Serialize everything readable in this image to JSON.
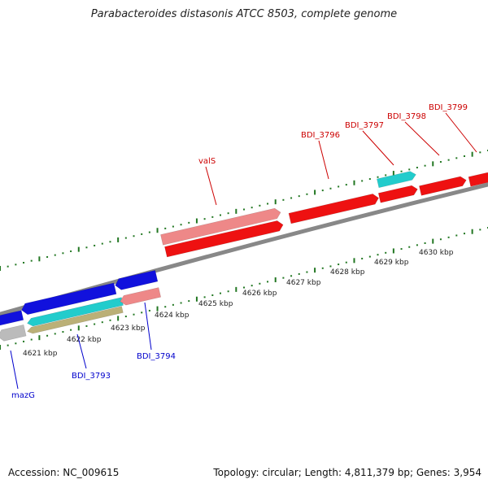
{
  "title": "Parabacteroides distasonis ATCC 8503, complete genome",
  "footer": {
    "accession": "Accession: NC_009615",
    "summary": "Topology: circular; Length: 4,811,379 bp; Genes: 3,954"
  },
  "colors": {
    "forward_label": "#cc0000",
    "reverse_label": "#0000cc",
    "backbone": "#888888",
    "tick": "#227722",
    "red": "#ee1111",
    "salmon": "#ee8888",
    "blue": "#1111dd",
    "cyan": "#22cccc",
    "olive": "#bbb077",
    "gray": "#bbbbbb"
  },
  "scale_kbp": [
    {
      "kbp": 4621,
      "label": "4621 kbp"
    },
    {
      "kbp": 4622,
      "label": "4622 kbp"
    },
    {
      "kbp": 4623,
      "label": "4623 kbp"
    },
    {
      "kbp": 4624,
      "label": "4624 kbp"
    },
    {
      "kbp": 4625,
      "label": "4625 kbp"
    },
    {
      "kbp": 4626,
      "label": "4626 kbp"
    },
    {
      "kbp": 4627,
      "label": "4627 kbp"
    },
    {
      "kbp": 4628,
      "label": "4628 kbp"
    },
    {
      "kbp": 4629,
      "label": "4629 kbp"
    },
    {
      "kbp": 4630,
      "label": "4630 kbp"
    }
  ],
  "genes": [
    {
      "label": "valS",
      "strand": "forward",
      "color": "red"
    },
    {
      "label": "BDI_3796",
      "strand": "forward",
      "color": "red"
    },
    {
      "label": "BDI_3797",
      "strand": "forward",
      "color": "red"
    },
    {
      "label": "BDI_3798",
      "strand": "forward",
      "color": "red"
    },
    {
      "label": "BDI_3799",
      "strand": "forward",
      "color": "red"
    },
    {
      "label": "BDI_3794",
      "strand": "reverse",
      "color": "salmon"
    },
    {
      "label": "BDI_3793",
      "strand": "reverse",
      "color": "blue"
    },
    {
      "label": "mazG",
      "strand": "reverse",
      "color": "blue"
    }
  ]
}
